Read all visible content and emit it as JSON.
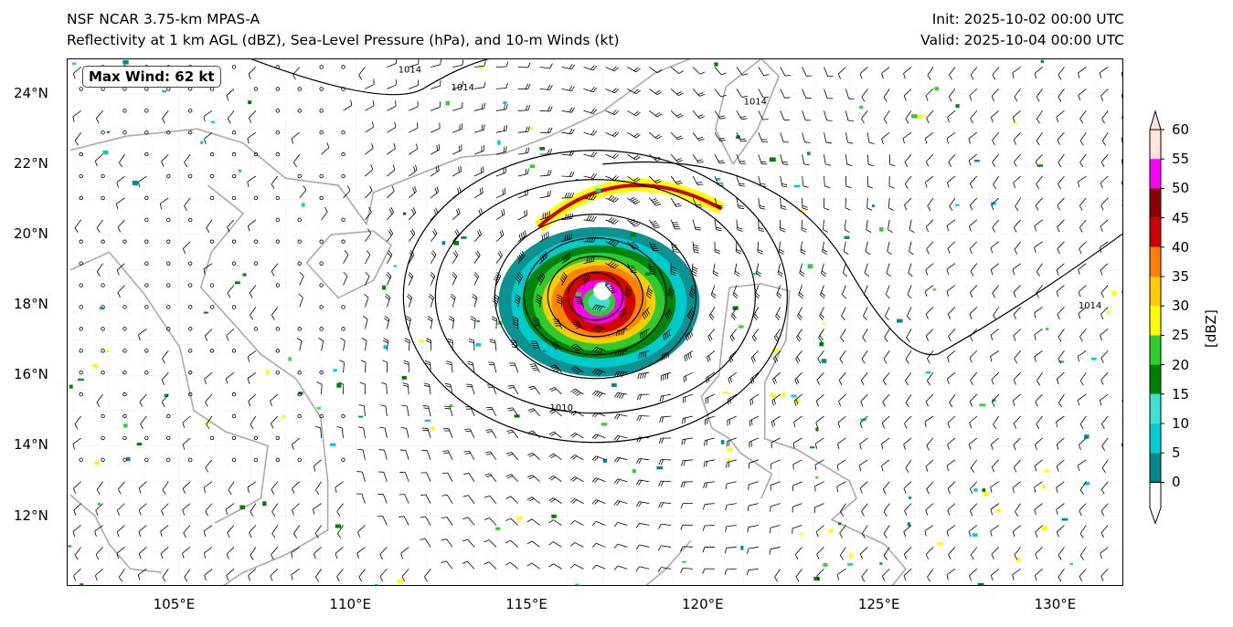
{
  "header": {
    "title": "NSF NCAR 3.75-km MPAS-A",
    "subtitle": "Reflectivity at 1 km AGL (dBZ), Sea-Level Pressure (hPa), and 10-m Winds (kt)",
    "init": "Init: 2025-10-02 00:00 UTC",
    "valid": "Valid: 2025-10-04 00:00 UTC"
  },
  "map": {
    "max_wind_label": "Max Wind: 62 kt",
    "lat_ticks": [
      "24°N",
      "22°N",
      "20°N",
      "18°N",
      "16°N",
      "14°N",
      "12°N"
    ],
    "lon_ticks": [
      "105°E",
      "110°E",
      "115°E",
      "120°E",
      "125°E",
      "130°E"
    ],
    "isobar_labels": [
      "1014",
      "1014",
      "1014",
      "1014",
      "1010"
    ],
    "storm_center": {
      "lon": 117.0,
      "lat": 18.4
    }
  },
  "colorbar": {
    "unit": "[dBZ]",
    "labels": [
      "60",
      "55",
      "50",
      "45",
      "40",
      "35",
      "30",
      "25",
      "20",
      "15",
      "10",
      "5",
      "0"
    ],
    "colors": [
      "#ffe4dc",
      "#ff00ff",
      "#8b0000",
      "#cc0000",
      "#ff7f00",
      "#ffcc00",
      "#ffff00",
      "#32cd32",
      "#008000",
      "#40e0d0",
      "#00cdcd",
      "#008b8b"
    ]
  }
}
